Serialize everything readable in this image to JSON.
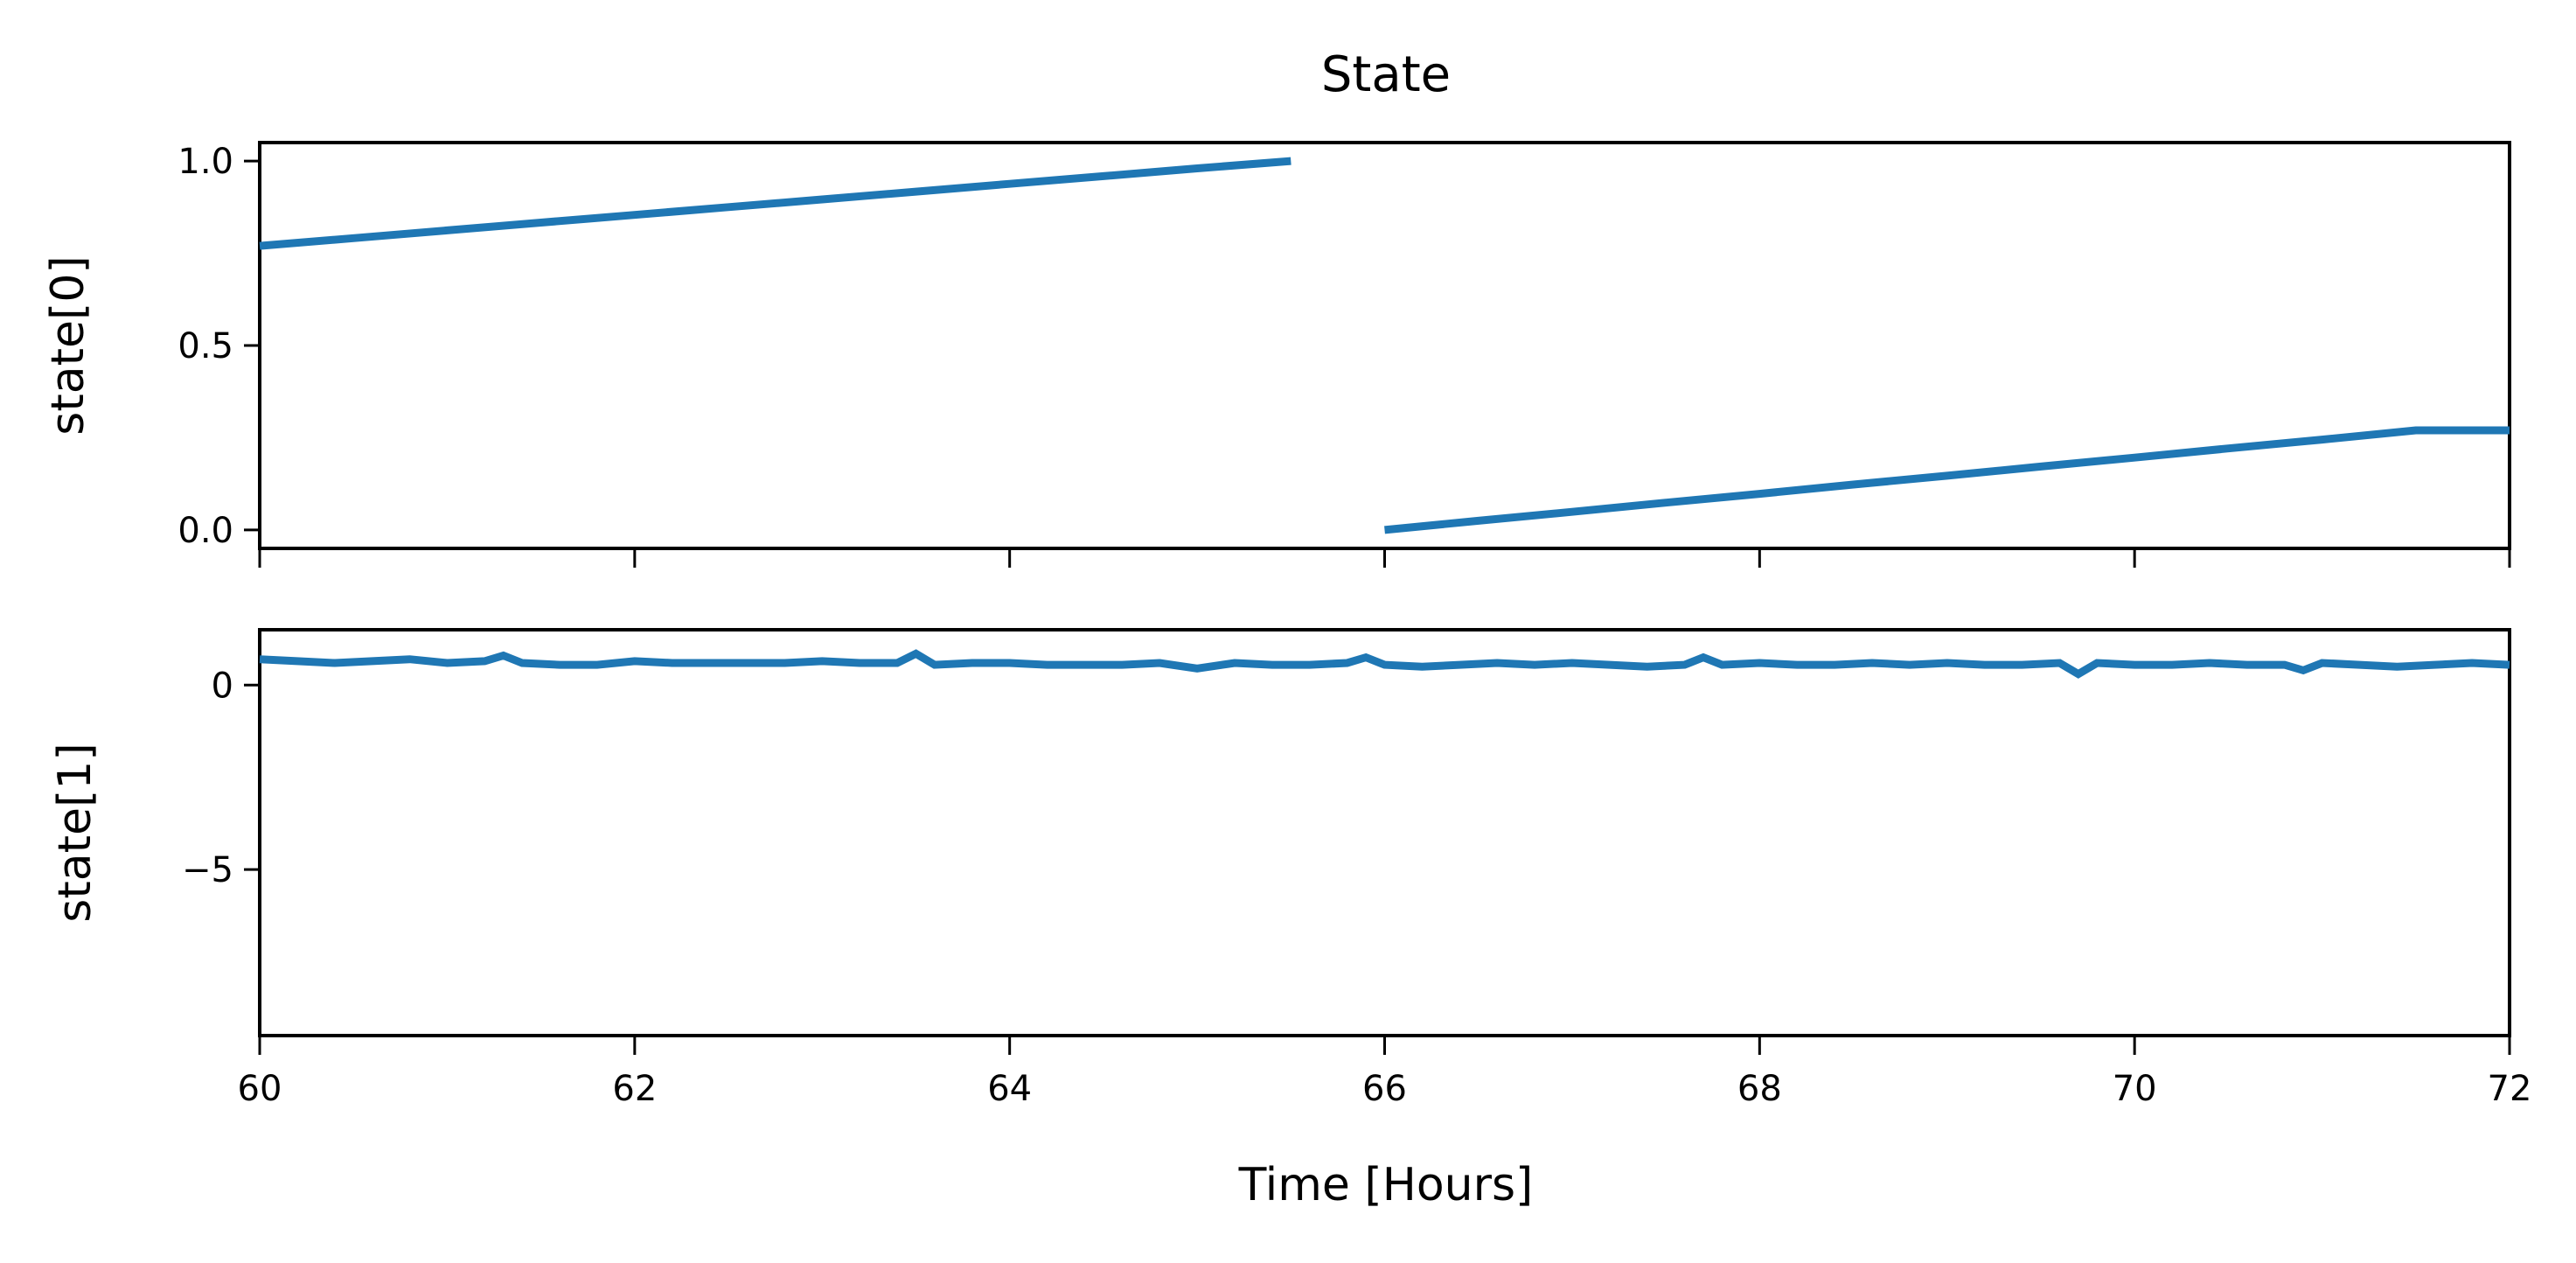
{
  "chart_data": {
    "type": "line",
    "title": "State",
    "xlabel": "Time [Hours]",
    "xlim": [
      60,
      72
    ],
    "xticks": [
      "60",
      "62",
      "64",
      "66",
      "68",
      "70",
      "72"
    ],
    "series_color": "#1f77b4",
    "subplots": [
      {
        "ylabel": "state[0]",
        "ylim": [
          -0.05,
          1.05
        ],
        "yticks": [
          {
            "value": 1.0,
            "label": "1.0"
          },
          {
            "value": 0.5,
            "label": "0.5"
          },
          {
            "value": 0.0,
            "label": "0.0"
          }
        ],
        "series": [
          {
            "x": [
              60.0,
              60.5,
              61.0,
              61.5,
              62.0,
              62.5,
              63.0,
              63.5,
              64.0,
              64.5,
              65.0,
              65.5,
              65.5,
              66.0,
              66.5,
              67.0,
              67.5,
              68.0,
              68.5,
              69.0,
              69.5,
              70.0,
              70.5,
              71.0,
              71.5,
              72.0
            ],
            "y": [
              0.77,
              0.791,
              0.812,
              0.833,
              0.854,
              0.875,
              0.896,
              0.917,
              0.938,
              0.959,
              0.98,
              1.0,
              null,
              0.0,
              0.025,
              0.049,
              0.074,
              0.098,
              0.123,
              0.147,
              0.172,
              0.196,
              0.221,
              0.245,
              0.27,
              0.27
            ]
          }
        ]
      },
      {
        "ylabel": "state[1]",
        "ylim": [
          -9.5,
          1.5
        ],
        "yticks": [
          {
            "value": 0,
            "label": "0"
          },
          {
            "value": -5,
            "label": "−5"
          }
        ],
        "series": [
          {
            "x": [
              60.0,
              60.2,
              60.4,
              60.6,
              60.8,
              61.0,
              61.2,
              61.3,
              61.4,
              61.6,
              61.8,
              62.0,
              62.2,
              62.4,
              62.6,
              62.8,
              63.0,
              63.2,
              63.4,
              63.5,
              63.6,
              63.8,
              64.0,
              64.2,
              64.4,
              64.6,
              64.8,
              65.0,
              65.2,
              65.4,
              65.6,
              65.8,
              65.9,
              66.0,
              66.2,
              66.4,
              66.6,
              66.8,
              67.0,
              67.2,
              67.4,
              67.6,
              67.7,
              67.8,
              68.0,
              68.2,
              68.4,
              68.6,
              68.8,
              69.0,
              69.2,
              69.4,
              69.6,
              69.7,
              69.8,
              70.0,
              70.2,
              70.4,
              70.6,
              70.8,
              70.9,
              71.0,
              71.2,
              71.4,
              71.6,
              71.8,
              72.0
            ],
            "y": [
              0.7,
              0.65,
              0.6,
              0.65,
              0.7,
              0.6,
              0.65,
              0.8,
              0.6,
              0.55,
              0.55,
              0.65,
              0.6,
              0.6,
              0.6,
              0.6,
              0.65,
              0.6,
              0.6,
              0.85,
              0.55,
              0.6,
              0.6,
              0.55,
              0.55,
              0.55,
              0.6,
              0.45,
              0.6,
              0.55,
              0.55,
              0.6,
              0.75,
              0.55,
              0.5,
              0.55,
              0.6,
              0.55,
              0.6,
              0.55,
              0.5,
              0.55,
              0.75,
              0.55,
              0.6,
              0.55,
              0.55,
              0.6,
              0.55,
              0.6,
              0.55,
              0.55,
              0.6,
              0.3,
              0.6,
              0.55,
              0.55,
              0.6,
              0.55,
              0.55,
              0.4,
              0.6,
              0.55,
              0.5,
              0.55,
              0.6,
              0.55
            ]
          }
        ]
      }
    ]
  }
}
